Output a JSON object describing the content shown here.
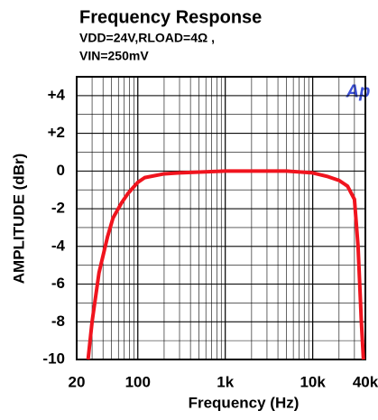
{
  "chart_data": {
    "type": "line",
    "title": "Frequency Response",
    "subtitle": [
      "VDD=24V,RLOAD=4Ω ,",
      "VIN=250mV"
    ],
    "annotation": "Ap",
    "x_label": "Frequency (Hz)",
    "y_label": "AMPLITUDE (dBr)",
    "xlog": true,
    "grid": true,
    "minor_grid": true,
    "xlim": [
      20,
      40000
    ],
    "ylim": [
      -10,
      5
    ],
    "xticks": [
      20,
      100,
      {
        "value": 1000,
        "label": "1k"
      },
      {
        "value": 10000,
        "label": "10k"
      },
      {
        "value": 40000,
        "label": "40k"
      }
    ],
    "yticks": [
      {
        "value": 4,
        "label": "+4"
      },
      {
        "value": 2,
        "label": "+2"
      },
      0,
      -2,
      -4,
      -6,
      -8,
      -10
    ],
    "series": [
      {
        "name": "Frequency Response",
        "color": "#f0141e",
        "x": [
          27,
          30,
          36,
          45,
          52,
          65,
          77,
          100,
          120,
          200,
          300,
          1000,
          5000,
          10000,
          15000,
          20000,
          25000,
          30000,
          33000,
          36000,
          38000
        ],
        "values": [
          -10,
          -8,
          -5.4,
          -3.5,
          -2.5,
          -1.7,
          -1.2,
          -0.6,
          -0.35,
          -0.15,
          -0.1,
          0,
          0,
          -0.1,
          -0.3,
          -0.5,
          -0.8,
          -1.5,
          -4,
          -8,
          -10
        ]
      }
    ]
  }
}
